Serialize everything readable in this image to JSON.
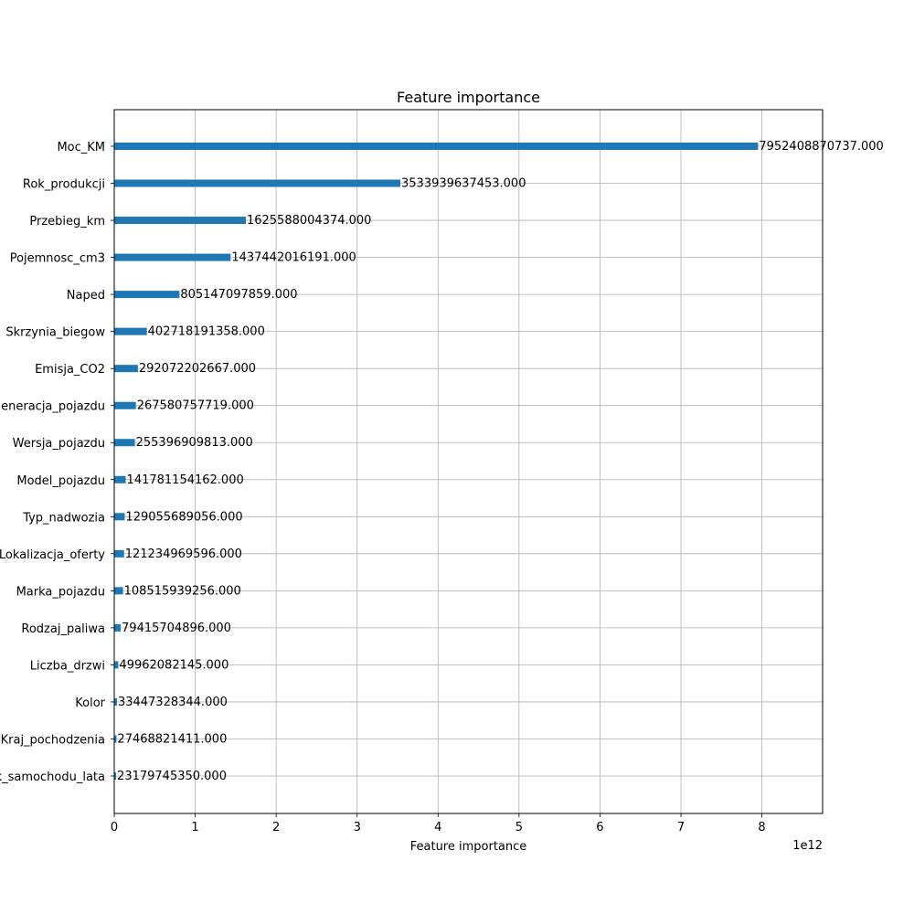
{
  "chart_data": {
    "type": "bar",
    "orientation": "horizontal",
    "title": "Feature importance",
    "xlabel": "Feature importance",
    "ylabel": "",
    "x_offset_label": "1e12",
    "x_scale_divisor": 1000000000000,
    "xlim": [
      0,
      8750000000000
    ],
    "xticks": [
      0,
      1,
      2,
      3,
      4,
      5,
      6,
      7,
      8
    ],
    "grid": true,
    "bar_color": "#1f77b4",
    "categories": [
      "Moc_KM",
      "Rok_produkcji",
      "Przebieg_km",
      "Pojemnosc_cm3",
      "Naped",
      "Skrzynia_biegow",
      "Emisja_CO2",
      "Generacja_pojazdu",
      "Wersja_pojazdu",
      "Model_pojazdu",
      "Typ_nadwozia",
      "Lokalizacja_oferty",
      "Marka_pojazdu",
      "Rodzaj_paliwa",
      "Liczba_drzwi",
      "Kolor",
      "Kraj_pochodzenia",
      "Wiek_samochodu_lata"
    ],
    "values": [
      7952408870737.0,
      3533939637453.0,
      1625588004374.0,
      1437442016191.0,
      805147097859.0,
      402718191358.0,
      292072202667.0,
      267580757719.0,
      255396909813.0,
      141781154162.0,
      129055689056.0,
      121234969596.0,
      108515939256.0,
      79415704896.0,
      49962082145.0,
      33447328344.0,
      27468821411.0,
      23179745350.0
    ],
    "value_labels": [
      "7952408870737.000",
      "3533939637453.000",
      "1625588004374.000",
      "1437442016191.000",
      "805147097859.000",
      "402718191358.000",
      "292072202667.000",
      "267580757719.000",
      "255396909813.000",
      "141781154162.000",
      "129055689056.000",
      "121234969596.000",
      "108515939256.000",
      "79415704896.000",
      "49962082145.000",
      "33447328344.000",
      "27468821411.000",
      "23179745350.000"
    ]
  }
}
